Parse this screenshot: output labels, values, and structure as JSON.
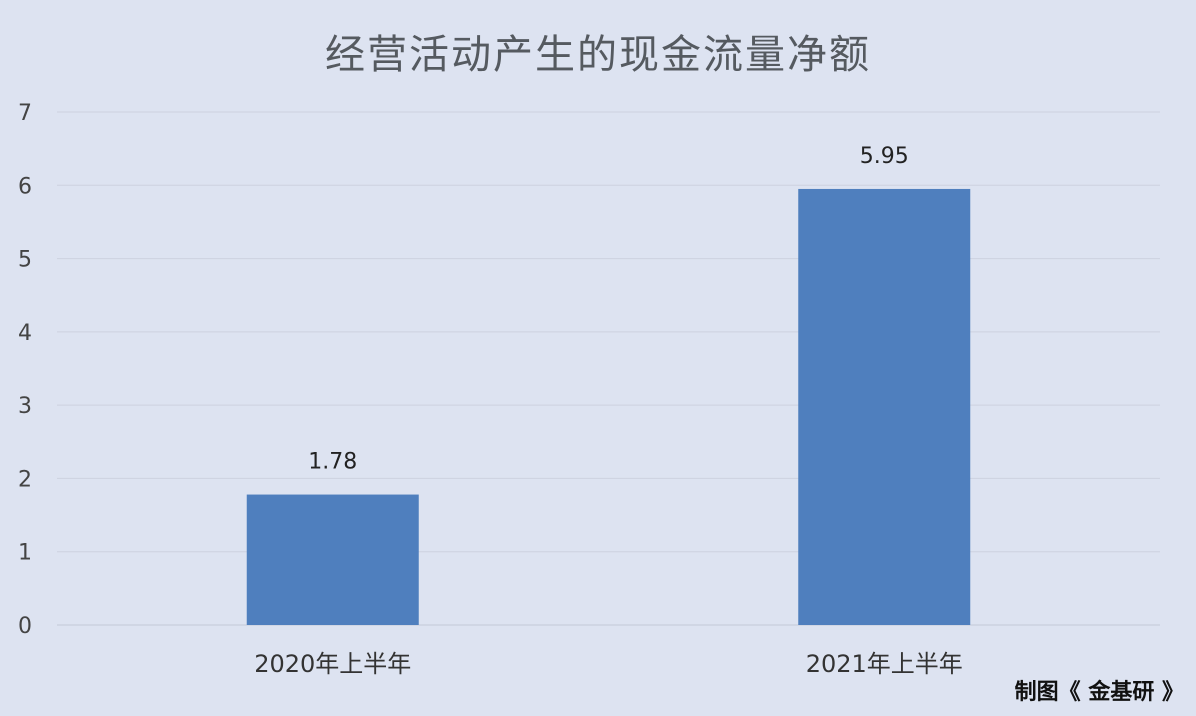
{
  "chart_data": {
    "type": "bar",
    "title": "经营活动产生的现金流量净额",
    "categories": [
      "2020年上半年",
      "2021年上半年"
    ],
    "values": [
      1.78,
      5.95
    ],
    "data_labels": [
      "1.78",
      "5.95"
    ],
    "xlabel": "",
    "ylabel": "",
    "ylim": [
      0,
      7
    ],
    "yticks": [
      "0",
      "1",
      "2",
      "3",
      "4",
      "5",
      "6",
      "7"
    ],
    "grid": true,
    "legend": "none",
    "bar_color": "#4f7fbe",
    "background": "#dde3f1"
  },
  "credit": "制图《 金基研 》"
}
